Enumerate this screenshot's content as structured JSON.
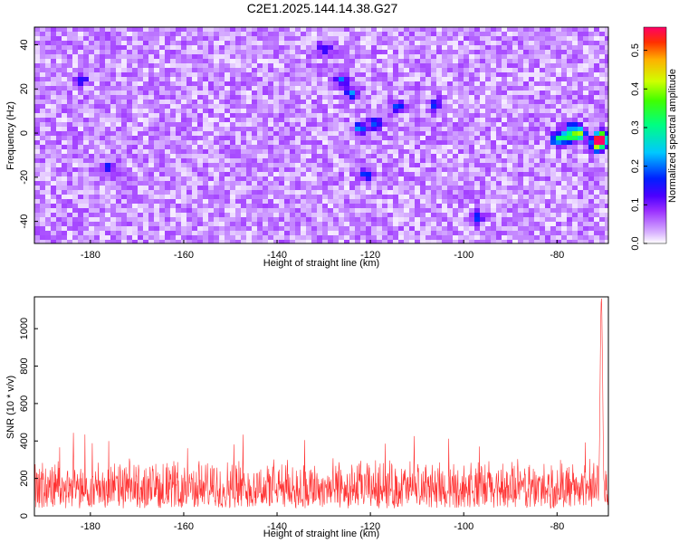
{
  "title": "C2E1.2025.144.14.38.G27",
  "chart_data": [
    {
      "type": "heatmap",
      "xlabel": "Height of straight line (km)",
      "ylabel": "Frequency (Hz)",
      "xlim": [
        -192,
        -69
      ],
      "ylim": [
        -50,
        48
      ],
      "xticks": [
        -180,
        -160,
        -140,
        -120,
        -100,
        -80
      ],
      "yticks": [
        -40,
        -20,
        0,
        20,
        40
      ],
      "colorbar": {
        "label": "Normalized spectral amplitude",
        "range": [
          0.0,
          0.56
        ],
        "ticks": [
          0.0,
          0.1,
          0.2,
          0.3,
          0.4,
          0.5
        ]
      },
      "background_level": 0.03,
      "hotspots": [
        {
          "x": -70.5,
          "y": -2,
          "value": 0.48
        },
        {
          "x": -70.8,
          "y": -4,
          "value": 0.42
        },
        {
          "x": -71.5,
          "y": -6,
          "value": 0.22
        },
        {
          "x": -76,
          "y": -1,
          "value": 0.26
        },
        {
          "x": -78,
          "y": -2,
          "value": 0.28
        },
        {
          "x": -80,
          "y": -3,
          "value": 0.22
        },
        {
          "x": -75,
          "y": 0,
          "value": 0.2
        },
        {
          "x": -77,
          "y": 3,
          "value": 0.15
        },
        {
          "x": -122,
          "y": 2,
          "value": 0.19
        },
        {
          "x": -124,
          "y": 18,
          "value": 0.16
        },
        {
          "x": -126,
          "y": 24,
          "value": 0.16
        },
        {
          "x": -119,
          "y": 4,
          "value": 0.14
        },
        {
          "x": -130,
          "y": 38,
          "value": 0.14
        },
        {
          "x": -114,
          "y": 12,
          "value": 0.13
        },
        {
          "x": -106,
          "y": 13,
          "value": 0.13
        },
        {
          "x": -97,
          "y": -38,
          "value": 0.13
        },
        {
          "x": -176,
          "y": -16,
          "value": 0.13
        },
        {
          "x": -121,
          "y": -19,
          "value": 0.13
        },
        {
          "x": -182,
          "y": 24,
          "value": 0.12
        }
      ]
    },
    {
      "type": "line",
      "xlabel": "Height of straight line (km)",
      "ylabel": "SNR (10 * v/v)",
      "xlim": [
        -192,
        -69
      ],
      "ylim": [
        0,
        1170
      ],
      "xticks": [
        -180,
        -160,
        -140,
        -120,
        -100,
        -80
      ],
      "yticks": [
        0,
        200,
        400,
        600,
        800,
        1000
      ],
      "series_color": "#ff3030",
      "baseline": 140,
      "noise_range": [
        40,
        320
      ],
      "occasional_peaks": [
        360,
        450
      ],
      "spike": {
        "x": -70.5,
        "value": 1165
      }
    }
  ],
  "colors": {
    "background": "#ffffff",
    "heatmap_low": "#f3eaff",
    "heatmap_mid": "#8a2be2",
    "snr_line": "#ff3030"
  }
}
